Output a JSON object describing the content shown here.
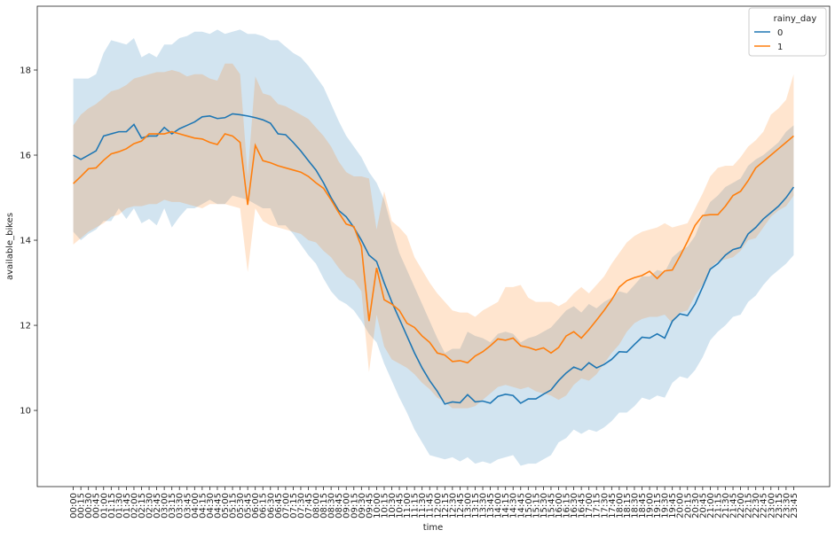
{
  "chart_data": {
    "type": "line",
    "x_label": "time",
    "y_label": "available_bikes",
    "legend_title": "rainy_day",
    "legend_position": "upper right",
    "categories": [
      "00:00",
      "00:15",
      "00:30",
      "00:45",
      "01:00",
      "01:15",
      "01:30",
      "01:45",
      "02:00",
      "02:15",
      "02:30",
      "02:45",
      "03:00",
      "03:15",
      "03:30",
      "03:45",
      "04:00",
      "04:15",
      "04:30",
      "04:45",
      "05:00",
      "05:15",
      "05:30",
      "05:45",
      "06:00",
      "06:15",
      "06:30",
      "06:45",
      "07:00",
      "07:15",
      "07:30",
      "07:45",
      "08:00",
      "08:15",
      "08:30",
      "08:45",
      "09:00",
      "09:15",
      "09:30",
      "09:45",
      "10:00",
      "10:15",
      "10:30",
      "10:45",
      "11:00",
      "11:15",
      "11:30",
      "11:45",
      "12:00",
      "12:15",
      "12:30",
      "12:45",
      "13:00",
      "13:15",
      "13:30",
      "13:45",
      "14:00",
      "14:15",
      "14:30",
      "14:45",
      "15:00",
      "15:15",
      "15:30",
      "15:45",
      "16:00",
      "16:15",
      "16:30",
      "16:45",
      "17:00",
      "17:15",
      "17:30",
      "17:45",
      "18:00",
      "18:15",
      "18:30",
      "18:45",
      "19:00",
      "19:15",
      "19:30",
      "19:45",
      "20:00",
      "20:15",
      "20:30",
      "20:45",
      "21:00",
      "21:15",
      "21:30",
      "21:45",
      "22:00",
      "22:15",
      "22:30",
      "22:45",
      "23:00",
      "23:15",
      "23:30",
      "23:45"
    ],
    "ylim": [
      8.21,
      19.5
    ],
    "yticks": [
      10,
      12,
      14,
      16,
      18
    ],
    "series": [
      {
        "name": "0",
        "color": "#1f77b4",
        "values": [
          16.0,
          15.9,
          16.0,
          16.1,
          16.45,
          16.5,
          16.55,
          16.55,
          16.72,
          16.4,
          16.45,
          16.45,
          16.65,
          16.5,
          16.62,
          16.7,
          16.78,
          16.9,
          16.92,
          16.86,
          16.88,
          16.97,
          16.95,
          16.92,
          16.88,
          16.83,
          16.75,
          16.5,
          16.48,
          16.3,
          16.1,
          15.87,
          15.65,
          15.35,
          15.0,
          14.7,
          14.55,
          14.3,
          14.0,
          13.65,
          13.5,
          13.0,
          12.55,
          12.15,
          11.75,
          11.35,
          11.0,
          10.7,
          10.45,
          10.15,
          10.2,
          10.18,
          10.37,
          10.2,
          10.22,
          10.17,
          10.33,
          10.38,
          10.35,
          10.17,
          10.27,
          10.27,
          10.38,
          10.48,
          10.7,
          10.88,
          11.02,
          10.95,
          11.12,
          11.0,
          11.08,
          11.2,
          11.38,
          11.37,
          11.55,
          11.72,
          11.7,
          11.8,
          11.7,
          12.1,
          12.27,
          12.23,
          12.5,
          12.9,
          13.32,
          13.45,
          13.65,
          13.78,
          13.83,
          14.15,
          14.3,
          14.5,
          14.65,
          14.8,
          15.0,
          15.25
        ],
        "upper": [
          17.8,
          17.8,
          17.8,
          17.9,
          18.4,
          18.7,
          18.65,
          18.6,
          18.75,
          18.3,
          18.4,
          18.3,
          18.6,
          18.6,
          18.75,
          18.8,
          18.9,
          18.9,
          18.85,
          18.95,
          18.85,
          18.9,
          18.95,
          18.85,
          18.85,
          18.8,
          18.7,
          18.7,
          18.55,
          18.4,
          18.3,
          18.1,
          17.85,
          17.6,
          17.2,
          16.8,
          16.45,
          16.2,
          15.95,
          15.6,
          15.35,
          14.95,
          14.3,
          13.7,
          13.3,
          12.9,
          12.5,
          12.1,
          11.7,
          11.35,
          11.45,
          11.45,
          11.85,
          11.75,
          11.7,
          11.6,
          11.8,
          11.85,
          11.8,
          11.6,
          11.7,
          11.75,
          11.85,
          11.95,
          12.15,
          12.35,
          12.45,
          12.3,
          12.5,
          12.4,
          12.55,
          12.65,
          12.8,
          12.75,
          12.95,
          13.15,
          13.15,
          13.3,
          13.25,
          13.6,
          13.75,
          13.85,
          14.1,
          14.55,
          14.9,
          15.05,
          15.25,
          15.35,
          15.45,
          15.75,
          15.9,
          16.0,
          16.15,
          16.3,
          16.55,
          16.7
        ],
        "lower": [
          14.2,
          14.0,
          14.15,
          14.25,
          14.45,
          14.45,
          14.75,
          14.5,
          14.75,
          14.4,
          14.5,
          14.35,
          14.75,
          14.3,
          14.55,
          14.75,
          14.75,
          14.85,
          14.95,
          14.85,
          14.85,
          15.05,
          15.0,
          14.95,
          14.85,
          14.75,
          14.75,
          14.35,
          14.35,
          14.15,
          13.9,
          13.65,
          13.45,
          13.1,
          12.8,
          12.6,
          12.5,
          12.35,
          12.1,
          11.8,
          11.6,
          11.1,
          10.7,
          10.3,
          9.95,
          9.55,
          9.25,
          8.95,
          8.9,
          8.85,
          8.9,
          8.8,
          8.9,
          8.75,
          8.8,
          8.75,
          8.85,
          8.9,
          8.95,
          8.7,
          8.75,
          8.75,
          8.85,
          8.95,
          9.25,
          9.35,
          9.55,
          9.45,
          9.55,
          9.5,
          9.6,
          9.75,
          9.95,
          9.95,
          10.1,
          10.3,
          10.25,
          10.35,
          10.3,
          10.65,
          10.8,
          10.75,
          10.95,
          11.25,
          11.65,
          11.85,
          12.0,
          12.2,
          12.25,
          12.55,
          12.7,
          12.95,
          13.15,
          13.3,
          13.45,
          13.65
        ]
      },
      {
        "name": "1",
        "color": "#ff7f0e",
        "values": [
          15.33,
          15.5,
          15.68,
          15.7,
          15.88,
          16.03,
          16.08,
          16.15,
          16.27,
          16.33,
          16.5,
          16.5,
          16.5,
          16.55,
          16.5,
          16.45,
          16.4,
          16.38,
          16.3,
          16.25,
          16.5,
          16.45,
          16.3,
          14.83,
          16.23,
          15.87,
          15.82,
          15.75,
          15.7,
          15.65,
          15.6,
          15.5,
          15.35,
          15.22,
          14.95,
          14.65,
          14.38,
          14.32,
          13.85,
          12.1,
          13.35,
          12.6,
          12.5,
          12.35,
          12.05,
          11.95,
          11.75,
          11.6,
          11.35,
          11.3,
          11.15,
          11.17,
          11.12,
          11.28,
          11.38,
          11.52,
          11.68,
          11.65,
          11.7,
          11.52,
          11.48,
          11.42,
          11.47,
          11.35,
          11.48,
          11.75,
          11.85,
          11.7,
          11.9,
          12.12,
          12.35,
          12.6,
          12.9,
          13.05,
          13.12,
          13.17,
          13.27,
          13.1,
          13.28,
          13.3,
          13.62,
          13.97,
          14.35,
          14.58,
          14.6,
          14.6,
          14.8,
          15.05,
          15.15,
          15.4,
          15.7,
          15.85,
          16.0,
          16.15,
          16.3,
          16.45
        ],
        "upper": [
          16.7,
          16.95,
          17.1,
          17.2,
          17.35,
          17.5,
          17.55,
          17.65,
          17.8,
          17.85,
          17.9,
          17.95,
          17.95,
          18.0,
          17.95,
          17.85,
          17.9,
          17.9,
          17.8,
          17.75,
          18.15,
          18.15,
          17.9,
          15.5,
          17.85,
          17.45,
          17.4,
          17.2,
          17.15,
          17.05,
          16.95,
          16.85,
          16.65,
          16.45,
          16.2,
          15.85,
          15.6,
          15.5,
          15.5,
          15.45,
          14.25,
          15.15,
          14.45,
          14.3,
          14.1,
          13.6,
          13.3,
          13.0,
          12.75,
          12.55,
          12.35,
          12.3,
          12.3,
          12.2,
          12.35,
          12.45,
          12.55,
          12.9,
          12.9,
          12.95,
          12.65,
          12.55,
          12.55,
          12.55,
          12.45,
          12.55,
          12.75,
          12.9,
          12.75,
          12.95,
          13.15,
          13.45,
          13.7,
          13.95,
          14.1,
          14.2,
          14.25,
          14.3,
          14.4,
          14.3,
          14.35,
          14.4,
          14.75,
          15.1,
          15.5,
          15.7,
          15.75,
          15.75,
          15.95,
          16.2,
          16.35,
          16.55,
          16.95,
          17.1,
          17.3,
          17.9
        ],
        "lower": [
          13.9,
          14.05,
          14.2,
          14.3,
          14.4,
          14.55,
          14.6,
          14.75,
          14.8,
          14.8,
          14.85,
          14.85,
          14.95,
          14.9,
          14.9,
          14.85,
          14.8,
          14.75,
          14.85,
          14.85,
          14.85,
          14.8,
          14.75,
          13.25,
          14.75,
          14.45,
          14.35,
          14.3,
          14.25,
          14.2,
          14.15,
          14.0,
          13.95,
          13.75,
          13.6,
          13.35,
          13.15,
          13.05,
          12.8,
          10.9,
          12.25,
          11.5,
          11.2,
          11.1,
          11.0,
          10.85,
          10.65,
          10.5,
          10.3,
          10.2,
          10.05,
          10.05,
          10.05,
          10.1,
          10.25,
          10.4,
          10.55,
          10.6,
          10.55,
          10.5,
          10.55,
          10.45,
          10.4,
          10.35,
          10.25,
          10.35,
          10.6,
          10.75,
          10.7,
          10.85,
          11.1,
          11.35,
          11.55,
          11.85,
          12.05,
          12.15,
          12.2,
          12.2,
          12.25,
          12.05,
          12.3,
          12.35,
          12.7,
          12.95,
          13.35,
          13.5,
          13.55,
          13.6,
          13.75,
          14.0,
          14.05,
          14.3,
          14.55,
          14.7,
          14.8,
          15.05
        ]
      }
    ]
  }
}
